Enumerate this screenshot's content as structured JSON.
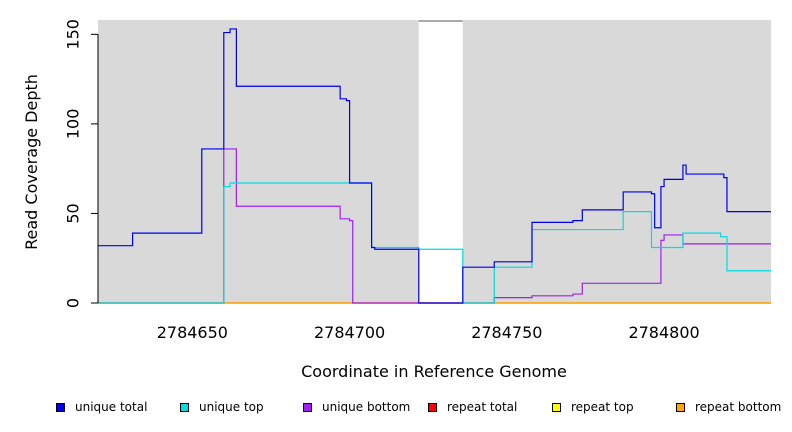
{
  "chart_data": {
    "type": "line",
    "title": "",
    "xlabel": "Coordinate in Reference Genome",
    "ylabel": "Read Coverage Depth",
    "xlim": [
      2784620,
      2784834
    ],
    "ylim": [
      0,
      158
    ],
    "x_ticks": [
      2784650,
      2784700,
      2784750,
      2784800
    ],
    "x_tick_labels": [
      "2784650",
      "2784700",
      "2784750",
      "2784800"
    ],
    "y_ticks": [
      0,
      50,
      100,
      150
    ],
    "y_tick_labels": [
      "0",
      "50",
      "100",
      "150"
    ],
    "grid": false,
    "background": "#d9d9d9",
    "gap": [
      2784722,
      2784736
    ],
    "legend_position": "bottom",
    "series": [
      {
        "name": "unique total",
        "color": "#0000ee",
        "step": true,
        "x": [
          2784620,
          2784631,
          2784653,
          2784660,
          2784662,
          2784664,
          2784697,
          2784699,
          2784700,
          2784706,
          2784707,
          2784708,
          2784722,
          2784736,
          2784746,
          2784758,
          2784771,
          2784774,
          2784787,
          2784796,
          2784797,
          2784799,
          2784800,
          2784806,
          2784807,
          2784819,
          2784820,
          2784834
        ],
        "y": [
          32,
          39,
          86,
          151,
          153,
          121,
          114,
          113,
          67,
          67,
          31,
          30,
          0,
          20,
          23,
          45,
          46,
          52,
          62,
          61,
          42,
          65,
          69,
          77,
          72,
          70,
          51,
          51
        ]
      },
      {
        "name": "unique top",
        "color": "#00dddd",
        "step": true,
        "x": [
          2784620,
          2784660,
          2784662,
          2784706,
          2784707,
          2784722,
          2784736,
          2784746,
          2784758,
          2784787,
          2784796,
          2784806,
          2784818,
          2784820,
          2784834
        ],
        "y": [
          0,
          65,
          67,
          67,
          31,
          30,
          0,
          20,
          41,
          51,
          31,
          39,
          37,
          18,
          18
        ]
      },
      {
        "name": "unique bottom",
        "color": "#a020f0",
        "step": true,
        "x": [
          2784620,
          2784660,
          2784664,
          2784697,
          2784700,
          2784701,
          2784722,
          2784736,
          2784746,
          2784758,
          2784771,
          2784774,
          2784799,
          2784800,
          2784806,
          2784834
        ],
        "y": [
          0,
          86,
          54,
          47,
          46,
          0,
          0,
          0,
          3,
          4,
          5,
          11,
          35,
          38,
          33,
          33
        ]
      },
      {
        "name": "repeat total",
        "color": "#ff0000",
        "step": true,
        "x": [
          2784620,
          2784834
        ],
        "y": [
          0,
          0
        ]
      },
      {
        "name": "repeat top",
        "color": "#ffff00",
        "step": true,
        "x": [
          2784620,
          2784834
        ],
        "y": [
          0,
          0
        ]
      },
      {
        "name": "repeat bottom",
        "color": "#ffa500",
        "step": true,
        "x": [
          2784620,
          2784834
        ],
        "y": [
          0,
          0
        ]
      }
    ]
  }
}
